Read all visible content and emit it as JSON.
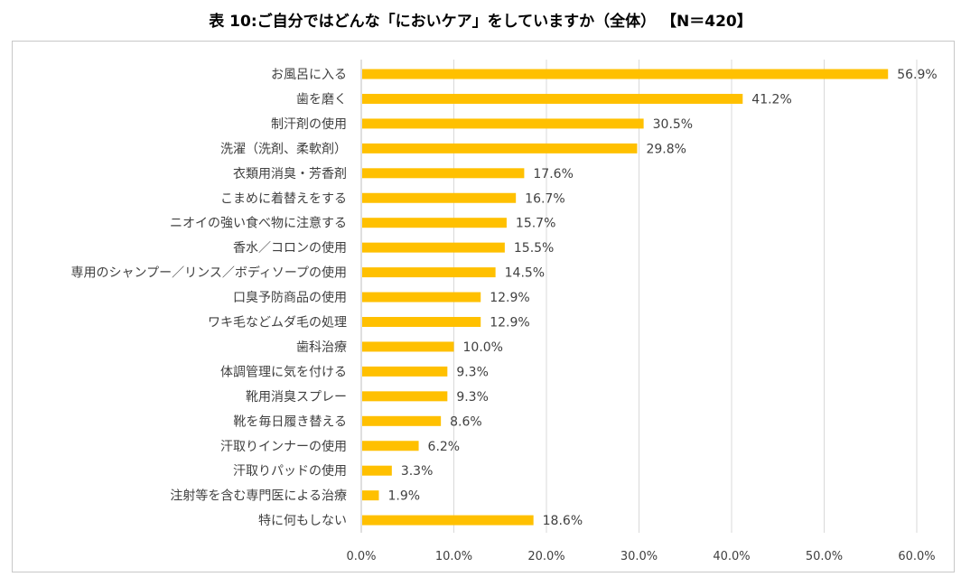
{
  "title": "表 10:ご自分ではどんな「においケア」をしていますか（全体） 【N＝420】",
  "colors": {
    "bar": "#FFC000",
    "grid": "#D9D9D9",
    "axis": "#BFBFBF",
    "text": "#404040"
  },
  "chart_data": {
    "type": "bar",
    "orientation": "horizontal",
    "title": "表 10:ご自分ではどんな「においケア」をしていますか（全体） 【N＝420】",
    "xlabel": "",
    "ylabel": "",
    "xlim": [
      0,
      60
    ],
    "xticks": [
      "0.0%",
      "10.0%",
      "20.0%",
      "30.0%",
      "40.0%",
      "50.0%",
      "60.0%"
    ],
    "grid": true,
    "legend": "none",
    "categories": [
      "お風呂に入る",
      "歯を磨く",
      "制汗剤の使用",
      "洗濯（洗剤、柔軟剤）",
      "衣類用消臭・芳香剤",
      "こまめに着替えをする",
      "ニオイの強い食べ物に注意する",
      "香水／コロンの使用",
      "専用のシャンプー／リンス／ボディソープの使用",
      "口臭予防商品の使用",
      "ワキ毛などムダ毛の処理",
      "歯科治療",
      "体調管理に気を付ける",
      "靴用消臭スプレー",
      "靴を毎日履き替える",
      "汗取りインナーの使用",
      "汗取りパッドの使用",
      "注射等を含む専門医による治療",
      "特に何もしない"
    ],
    "values": [
      56.9,
      41.2,
      30.5,
      29.8,
      17.6,
      16.7,
      15.7,
      15.5,
      14.5,
      12.9,
      12.9,
      10.0,
      9.3,
      9.3,
      8.6,
      6.2,
      3.3,
      1.9,
      18.6
    ],
    "value_labels": [
      "56.9%",
      "41.2%",
      "30.5%",
      "29.8%",
      "17.6%",
      "16.7%",
      "15.7%",
      "15.5%",
      "14.5%",
      "12.9%",
      "12.9%",
      "10.0%",
      "9.3%",
      "9.3%",
      "8.6%",
      "6.2%",
      "3.3%",
      "1.9%",
      "18.6%"
    ]
  }
}
